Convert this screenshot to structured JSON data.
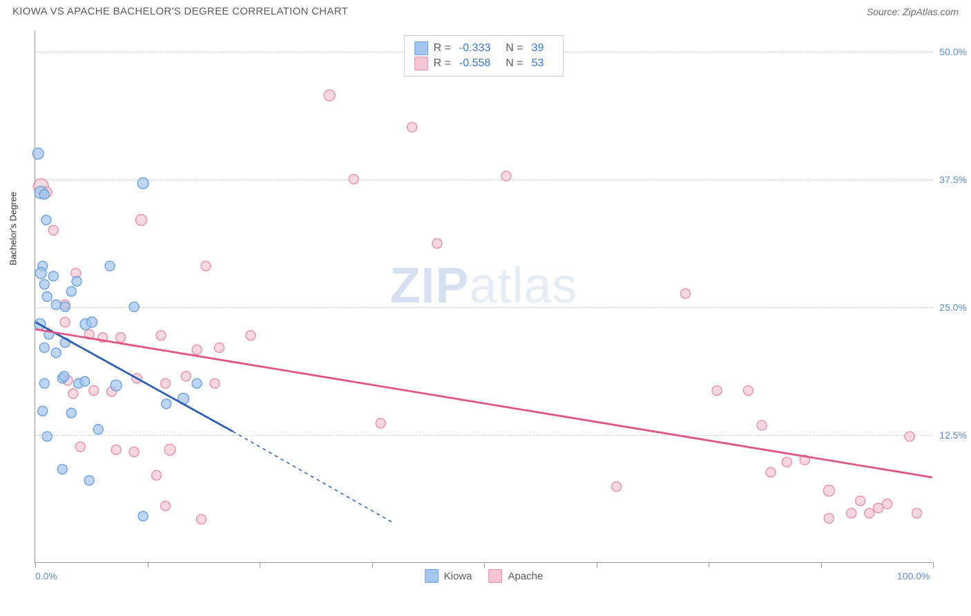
{
  "header": {
    "title": "KIOWA VS APACHE BACHELOR'S DEGREE CORRELATION CHART",
    "source": "Source: ZipAtlas.com"
  },
  "watermark": {
    "zip": "ZIP",
    "atlas": "atlas"
  },
  "chart": {
    "type": "scatter",
    "background_color": "#ffffff",
    "grid_color": "#cccccc",
    "axis_color": "#999999",
    "label_color": "#5b8dd6",
    "ylabel_title": "Bachelor's Degree",
    "xlim": [
      0,
      100
    ],
    "ylim": [
      0,
      52
    ],
    "ytick_step": 12.5,
    "yticks": [
      {
        "v": 12.5,
        "label": "12.5%"
      },
      {
        "v": 25.0,
        "label": "25.0%"
      },
      {
        "v": 37.5,
        "label": "37.5%"
      },
      {
        "v": 50.0,
        "label": "50.0%"
      }
    ],
    "xticks_minor": [
      0,
      12.5,
      25,
      37.5,
      50,
      62.5,
      75,
      87.5,
      100
    ],
    "xlabels": [
      {
        "v": 0,
        "label": "0.0%"
      },
      {
        "v": 100,
        "label": "100.0%"
      }
    ],
    "series": [
      {
        "name": "Kiowa",
        "marker_color": "#a3c5ee",
        "marker_stroke": "#6ba0e0",
        "marker_opacity": 0.7,
        "line_color": "#2c5fb0",
        "line_width": 2.8,
        "line_dash_tail": "5,5",
        "R": "-0.333",
        "N": "39",
        "trend": {
          "x1": 0,
          "y1": 23.5,
          "x2_solid": 22,
          "y2_solid": 12.8,
          "x2": 40,
          "y2": 3.8
        },
        "points": [
          {
            "x": 0.3,
            "y": 40,
            "r": 8
          },
          {
            "x": 0.6,
            "y": 36.2,
            "r": 9
          },
          {
            "x": 1,
            "y": 36,
            "r": 7
          },
          {
            "x": 1.2,
            "y": 33.5,
            "r": 7
          },
          {
            "x": 0.8,
            "y": 29,
            "r": 7
          },
          {
            "x": 0.6,
            "y": 28.3,
            "r": 8
          },
          {
            "x": 1,
            "y": 27.2,
            "r": 7
          },
          {
            "x": 2,
            "y": 28,
            "r": 7
          },
          {
            "x": 1.3,
            "y": 26,
            "r": 7
          },
          {
            "x": 2.3,
            "y": 25.2,
            "r": 7
          },
          {
            "x": 0.5,
            "y": 23.3,
            "r": 8
          },
          {
            "x": 3.3,
            "y": 25,
            "r": 7
          },
          {
            "x": 4,
            "y": 26.5,
            "r": 7
          },
          {
            "x": 4.6,
            "y": 27.5,
            "r": 7
          },
          {
            "x": 8.3,
            "y": 29,
            "r": 7
          },
          {
            "x": 12,
            "y": 37.1,
            "r": 8
          },
          {
            "x": 11,
            "y": 25,
            "r": 7
          },
          {
            "x": 5.6,
            "y": 23.3,
            "r": 8
          },
          {
            "x": 6.3,
            "y": 23.5,
            "r": 7.5
          },
          {
            "x": 1,
            "y": 21,
            "r": 7
          },
          {
            "x": 1.5,
            "y": 22.3,
            "r": 7
          },
          {
            "x": 2.3,
            "y": 20.5,
            "r": 7
          },
          {
            "x": 3.3,
            "y": 21.5,
            "r": 7
          },
          {
            "x": 3,
            "y": 18,
            "r": 7
          },
          {
            "x": 3.2,
            "y": 18.2,
            "r": 7
          },
          {
            "x": 1,
            "y": 17.5,
            "r": 7
          },
          {
            "x": 4.8,
            "y": 17.5,
            "r": 7
          },
          {
            "x": 5.5,
            "y": 17.7,
            "r": 7
          },
          {
            "x": 9,
            "y": 17.3,
            "r": 8
          },
          {
            "x": 0.8,
            "y": 14.8,
            "r": 7
          },
          {
            "x": 4,
            "y": 14.6,
            "r": 7
          },
          {
            "x": 7,
            "y": 13,
            "r": 7
          },
          {
            "x": 1.3,
            "y": 12.3,
            "r": 7
          },
          {
            "x": 3,
            "y": 9.1,
            "r": 7
          },
          {
            "x": 6,
            "y": 8,
            "r": 7
          },
          {
            "x": 12,
            "y": 4.5,
            "r": 7
          },
          {
            "x": 16.5,
            "y": 16,
            "r": 8
          },
          {
            "x": 14.6,
            "y": 15.5,
            "r": 7
          },
          {
            "x": 18,
            "y": 17.5,
            "r": 7
          }
        ]
      },
      {
        "name": "Apache",
        "marker_color": "#f4c6d3",
        "marker_stroke": "#e88fa9",
        "marker_opacity": 0.7,
        "line_color": "#e15584",
        "line_width": 2.8,
        "R": "-0.558",
        "N": "53",
        "trend": {
          "x1": 0,
          "y1": 22.8,
          "x2": 100,
          "y2": 8.3
        },
        "points": [
          {
            "x": 0.6,
            "y": 36.8,
            "r": 11
          },
          {
            "x": 1.2,
            "y": 36.2,
            "r": 8
          },
          {
            "x": 2,
            "y": 32.5,
            "r": 7
          },
          {
            "x": 3.3,
            "y": 23.5,
            "r": 7
          },
          {
            "x": 3.3,
            "y": 25.2,
            "r": 7
          },
          {
            "x": 4.5,
            "y": 28.3,
            "r": 7
          },
          {
            "x": 6,
            "y": 22.3,
            "r": 7
          },
          {
            "x": 7.5,
            "y": 22,
            "r": 7
          },
          {
            "x": 9.5,
            "y": 22,
            "r": 7
          },
          {
            "x": 11.8,
            "y": 33.5,
            "r": 8
          },
          {
            "x": 14,
            "y": 22.2,
            "r": 7
          },
          {
            "x": 19,
            "y": 29,
            "r": 7
          },
          {
            "x": 3.6,
            "y": 17.8,
            "r": 7
          },
          {
            "x": 4.2,
            "y": 16.5,
            "r": 7
          },
          {
            "x": 6.5,
            "y": 16.8,
            "r": 7
          },
          {
            "x": 8.5,
            "y": 16.7,
            "r": 7
          },
          {
            "x": 11.3,
            "y": 18,
            "r": 7
          },
          {
            "x": 14.5,
            "y": 17.5,
            "r": 7
          },
          {
            "x": 16.8,
            "y": 18.2,
            "r": 7
          },
          {
            "x": 20,
            "y": 17.5,
            "r": 7
          },
          {
            "x": 20.5,
            "y": 21,
            "r": 7
          },
          {
            "x": 18,
            "y": 20.8,
            "r": 7
          },
          {
            "x": 24,
            "y": 22.2,
            "r": 7
          },
          {
            "x": 5,
            "y": 11.3,
            "r": 7
          },
          {
            "x": 9,
            "y": 11,
            "r": 7
          },
          {
            "x": 11,
            "y": 10.8,
            "r": 7
          },
          {
            "x": 15,
            "y": 11,
            "r": 8
          },
          {
            "x": 13.5,
            "y": 8.5,
            "r": 7
          },
          {
            "x": 14.5,
            "y": 5.5,
            "r": 7
          },
          {
            "x": 18.5,
            "y": 4.2,
            "r": 7
          },
          {
            "x": 32.8,
            "y": 45.7,
            "r": 8
          },
          {
            "x": 35.5,
            "y": 37.5,
            "r": 7
          },
          {
            "x": 38.5,
            "y": 13.6,
            "r": 7
          },
          {
            "x": 42,
            "y": 42.6,
            "r": 7
          },
          {
            "x": 44.8,
            "y": 31.2,
            "r": 7
          },
          {
            "x": 52.5,
            "y": 37.8,
            "r": 7
          },
          {
            "x": 64.8,
            "y": 7.4,
            "r": 7
          },
          {
            "x": 72.5,
            "y": 26.3,
            "r": 7
          },
          {
            "x": 76,
            "y": 16.8,
            "r": 7
          },
          {
            "x": 79.5,
            "y": 16.8,
            "r": 7
          },
          {
            "x": 81,
            "y": 13.4,
            "r": 7
          },
          {
            "x": 82,
            "y": 8.8,
            "r": 7
          },
          {
            "x": 83.8,
            "y": 9.8,
            "r": 7
          },
          {
            "x": 85.8,
            "y": 10,
            "r": 7
          },
          {
            "x": 88.5,
            "y": 4.3,
            "r": 7
          },
          {
            "x": 88.5,
            "y": 7,
            "r": 8
          },
          {
            "x": 91,
            "y": 4.8,
            "r": 7
          },
          {
            "x": 92,
            "y": 6,
            "r": 7
          },
          {
            "x": 93,
            "y": 4.8,
            "r": 7
          },
          {
            "x": 94,
            "y": 5.3,
            "r": 7
          },
          {
            "x": 95,
            "y": 5.7,
            "r": 7
          },
          {
            "x": 97.5,
            "y": 12.3,
            "r": 7
          },
          {
            "x": 98.3,
            "y": 4.8,
            "r": 7
          }
        ]
      }
    ]
  },
  "legend_top": {
    "r_label": "R =",
    "n_label": "N ="
  },
  "legend_bottom": {
    "items": [
      "Kiowa",
      "Apache"
    ]
  }
}
